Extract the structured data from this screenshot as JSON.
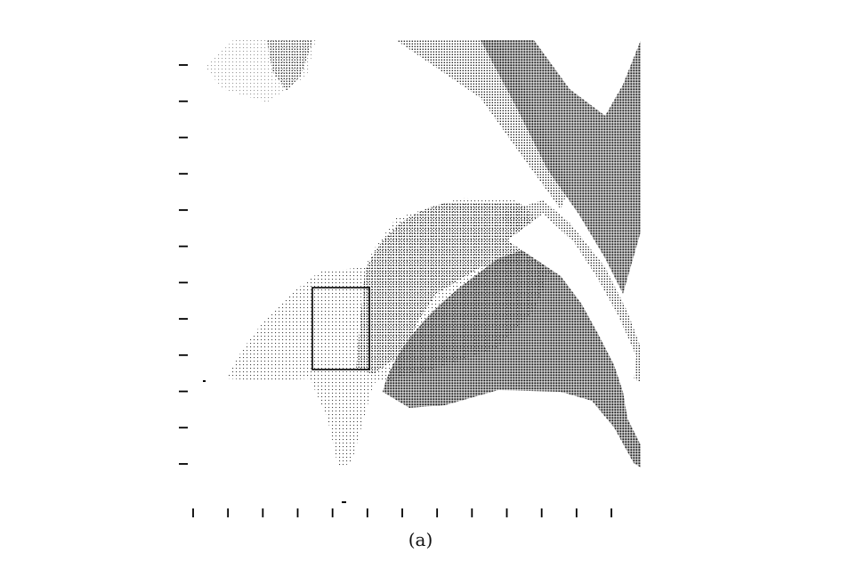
{
  "figure": {
    "caption": "(a)",
    "ink_color": "#1a1a1a",
    "box_color": "#000000",
    "left_tick_count": 12,
    "bottom_tick_count": 13
  }
}
